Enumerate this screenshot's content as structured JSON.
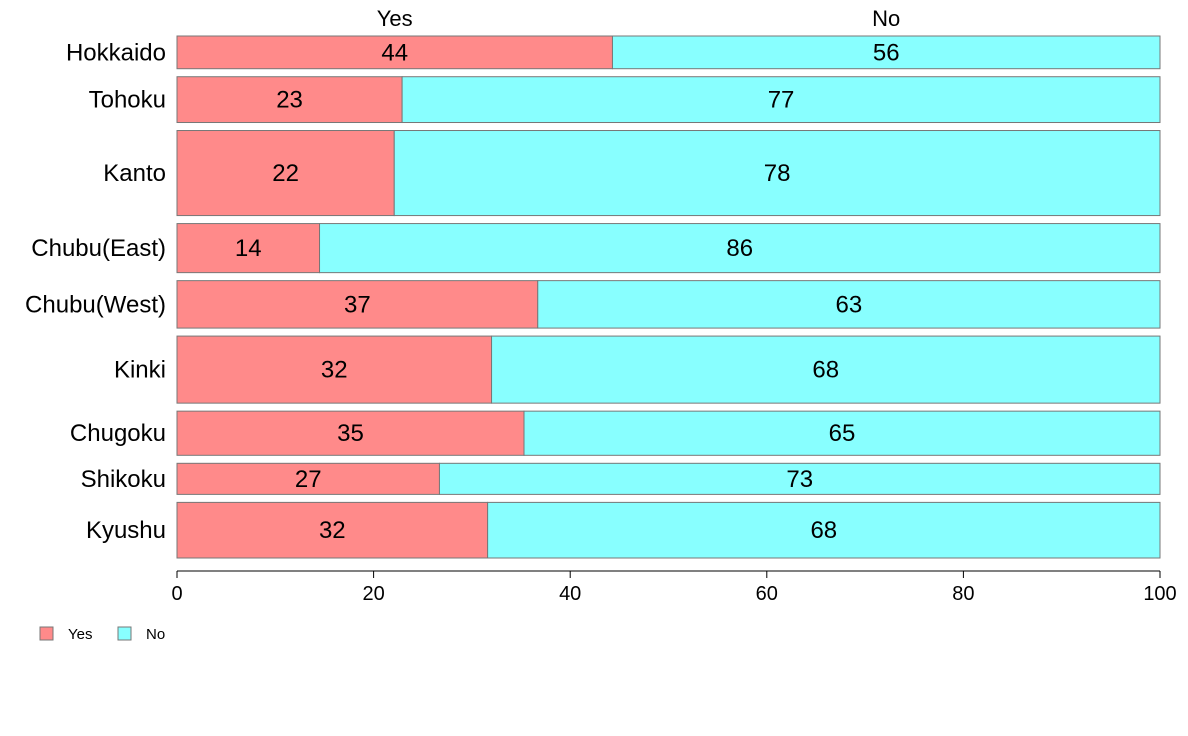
{
  "chart_data": {
    "type": "bar",
    "orientation": "horizontal",
    "stacked": true,
    "categories": [
      "Hokkaido",
      "Tohoku",
      "Kanto",
      "Chubu(East)",
      "Chubu(West)",
      "Kinki",
      "Chugoku",
      "Shikoku",
      "Kyushu"
    ],
    "series": [
      {
        "name": "Yes",
        "color": "#ff8a8a",
        "values": [
          44.3,
          22.9,
          22.1,
          14.5,
          36.7,
          32.0,
          35.3,
          26.7,
          31.6
        ],
        "labels": [
          "44",
          "23",
          "22",
          "14",
          "37",
          "32",
          "35",
          "27",
          "32"
        ]
      },
      {
        "name": "No",
        "color": "#88ffff",
        "values": [
          55.7,
          77.1,
          77.9,
          85.5,
          63.3,
          68.0,
          64.7,
          73.3,
          68.4
        ],
        "labels": [
          "56",
          "77",
          "78",
          "86",
          "63",
          "68",
          "65",
          "73",
          "68"
        ]
      }
    ],
    "relative_widths": [
      1.0,
      1.4,
      2.6,
      1.5,
      1.45,
      2.05,
      1.35,
      0.95,
      1.7
    ],
    "xlim": [
      0,
      100
    ],
    "xticks": [
      "0",
      "20",
      "40",
      "60",
      "80",
      "100"
    ],
    "column_headers": [
      "Yes",
      "No"
    ],
    "legend": {
      "position": "bottom-left",
      "items": [
        "Yes",
        "No"
      ]
    },
    "grid": false
  }
}
